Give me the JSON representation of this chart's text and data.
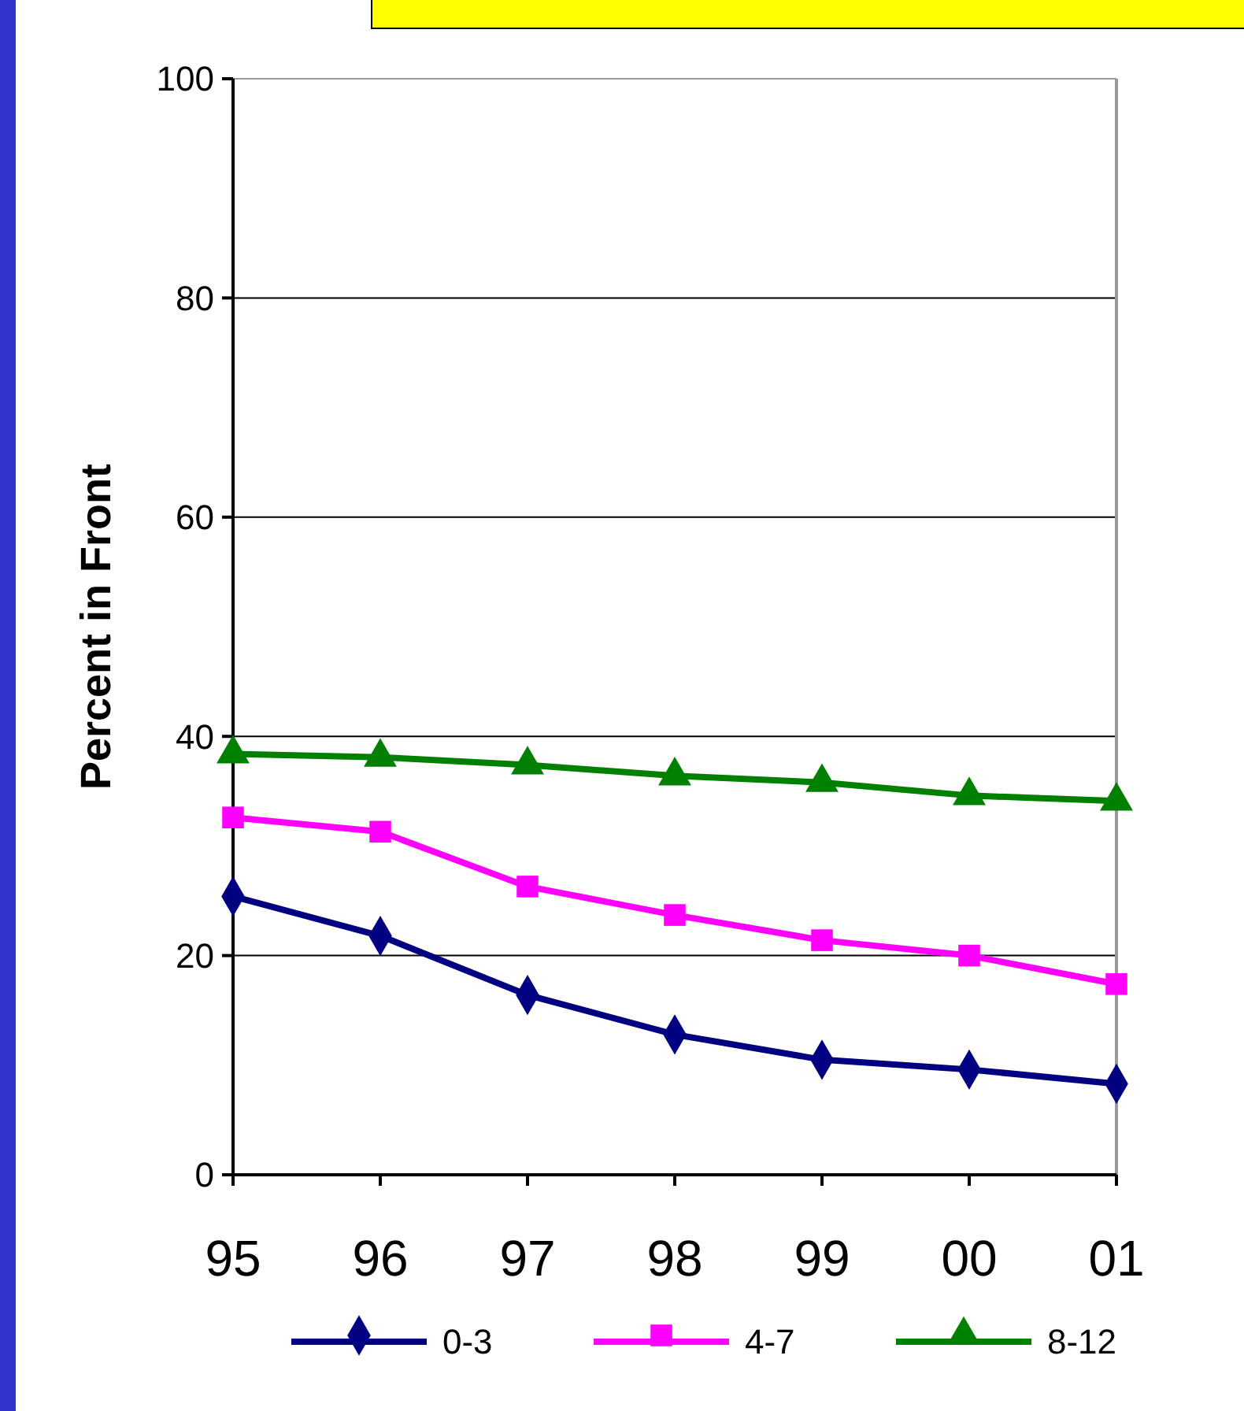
{
  "chart_data": {
    "type": "line",
    "ylabel": "Percent in Front",
    "categories": [
      "95",
      "96",
      "97",
      "98",
      "99",
      "00",
      "01"
    ],
    "series": [
      {
        "name": "0-3",
        "color": "#000080",
        "marker": "diamond",
        "values": [
          25.4,
          21.8,
          16.4,
          12.8,
          10.5,
          9.6,
          8.3
        ]
      },
      {
        "name": "4-7",
        "color": "#ff00ff",
        "marker": "square",
        "values": [
          32.6,
          31.3,
          26.3,
          23.7,
          21.4,
          20.0,
          17.4
        ]
      },
      {
        "name": "8-12",
        "color": "#008000",
        "marker": "triangle",
        "values": [
          38.4,
          38.1,
          37.4,
          36.4,
          35.8,
          34.6,
          34.1
        ]
      }
    ],
    "ylim": [
      0,
      100
    ],
    "yticks": [
      0,
      20,
      40,
      60,
      80,
      100
    ],
    "grid": "y",
    "legend": "bottom",
    "line_style": "solid"
  }
}
